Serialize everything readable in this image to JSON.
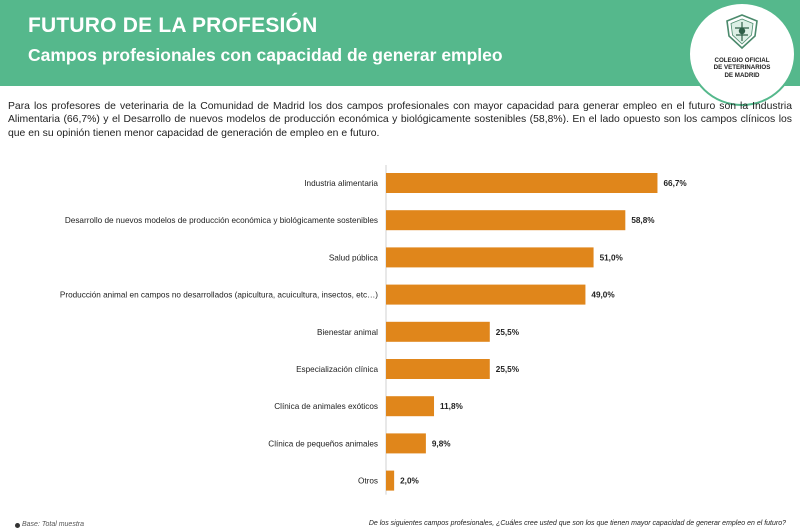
{
  "header": {
    "title": "FUTURO DE LA PROFESIÓN",
    "subtitle": "Campos profesionales con capacidad de generar empleo"
  },
  "logo": {
    "lines": [
      "COLEGIO OFICIAL",
      "DE VETERINARIOS",
      "DE MADRID"
    ]
  },
  "intro": "Para los profesores de veterinaria de la Comunidad de Madrid los dos campos profesionales con mayor capacidad para generar empleo en el futuro son la Industria Alimentaria (66,7%) y el Desarrollo de nuevos modelos de producción económica y biológicamente sostenibles (58,8%). En el lado opuesto son los campos clínicos los que en su opinión tienen menor capacidad de generación de empleo en e futuro.",
  "colors": {
    "header": "#55b88c",
    "bar": "#e0861b"
  },
  "chart_data": {
    "type": "bar",
    "orientation": "horizontal",
    "categories": [
      "Industria alimentaria",
      "Desarrollo de nuevos modelos de producción económica y biológicamente sostenibles",
      "Salud pública",
      "Producción animal en campos no desarrollados (apicultura, acuicultura, insectos, etc…)",
      "Bienestar animal",
      "Especialización clínica",
      "Clínica de animales exóticos",
      "Clínica de pequeños animales",
      "Otros"
    ],
    "values": [
      66.7,
      58.8,
      51.0,
      49.0,
      25.5,
      25.5,
      11.8,
      9.8,
      2.0
    ],
    "value_labels": [
      "66,7%",
      "58,8%",
      "51,0%",
      "49,0%",
      "25,5%",
      "25,5%",
      "11,8%",
      "9,8%",
      "2,0%"
    ],
    "xlim": [
      0,
      100
    ],
    "grid": false
  },
  "footer": {
    "base": "Base: Total muestra",
    "question": "De los siguientes campos profesionales, ¿Cuáles cree usted que son los que tienen mayor capacidad de generar empleo en el futuro?"
  }
}
